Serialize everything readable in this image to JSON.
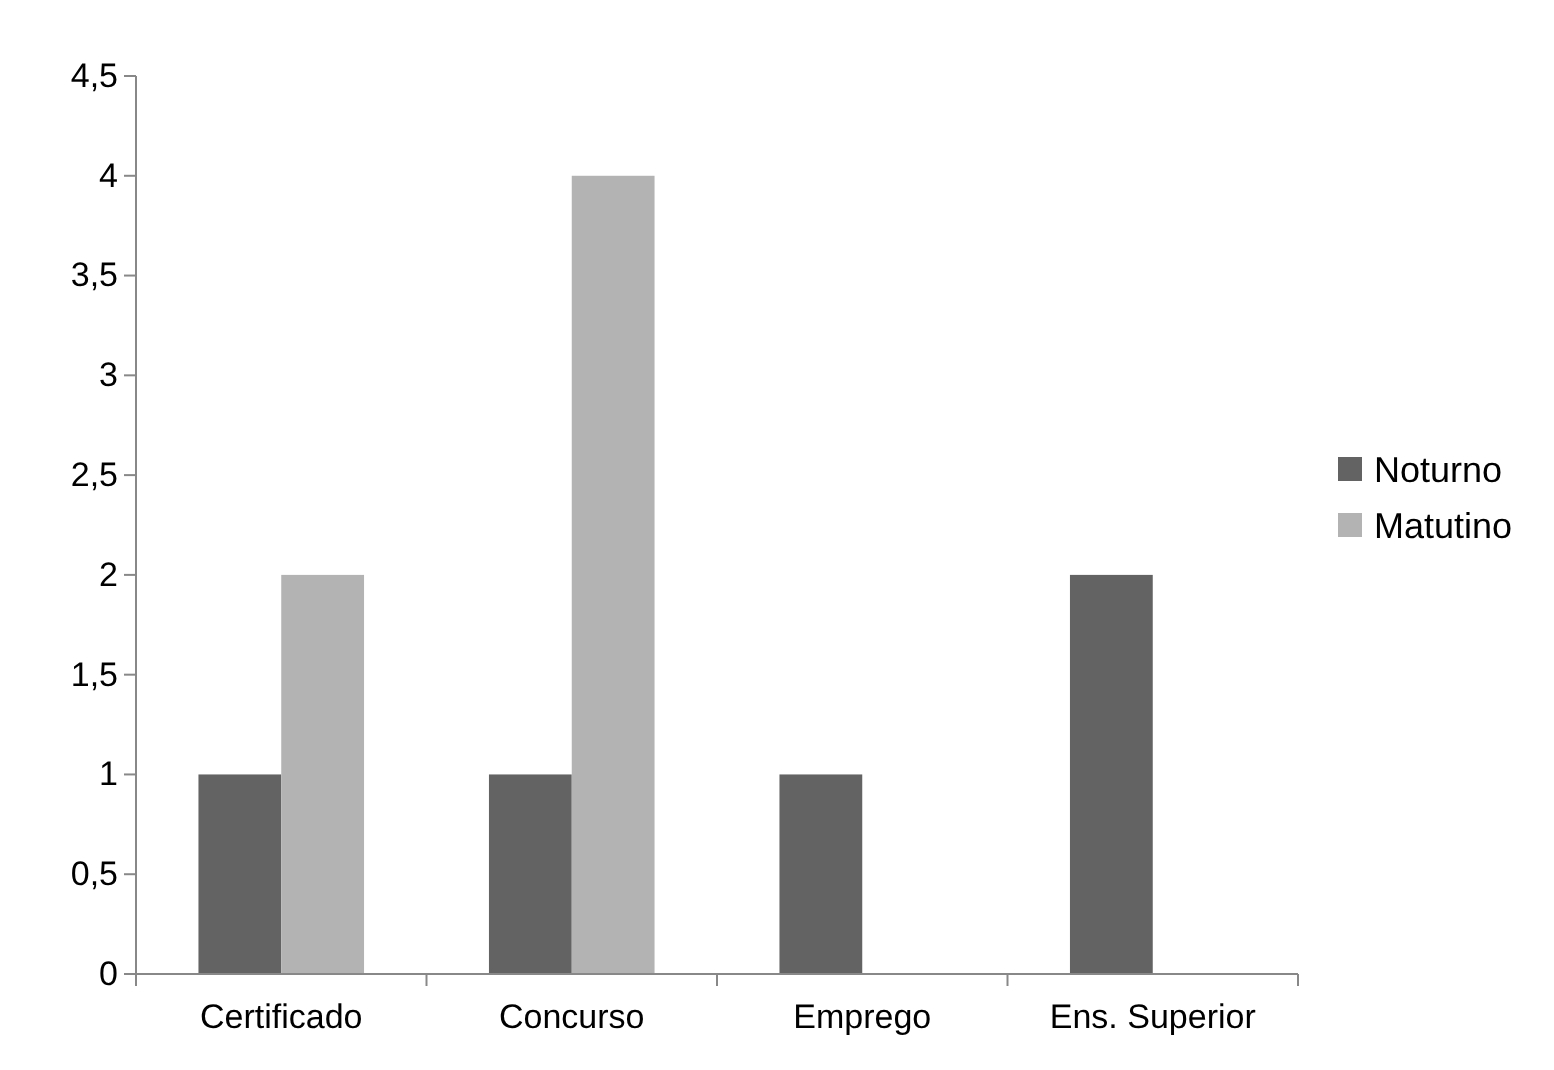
{
  "chart_data": {
    "type": "bar",
    "categories": [
      "Certificado",
      "Concurso",
      "Emprego",
      "Ens. Superior"
    ],
    "series": [
      {
        "name": "Noturno",
        "color": "#636363",
        "values": [
          1,
          1,
          1,
          2
        ]
      },
      {
        "name": "Matutino",
        "color": "#b3b3b3",
        "values": [
          2,
          4,
          0,
          0
        ]
      }
    ],
    "ylim": [
      0,
      4.5
    ],
    "yticks": [
      0,
      {
        "value": 0.5,
        "label": "0,5"
      },
      1,
      {
        "value": 1.5,
        "label": "1,5"
      },
      2,
      {
        "value": 2.5,
        "label": "2,5"
      },
      3,
      {
        "value": 3.5,
        "label": "3,5"
      },
      4,
      {
        "value": 4.5,
        "label": "4,5"
      }
    ],
    "grid": false,
    "legend": "right"
  }
}
